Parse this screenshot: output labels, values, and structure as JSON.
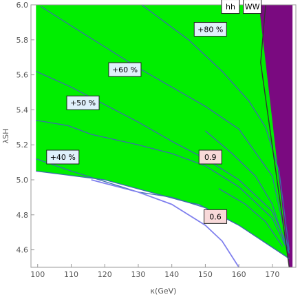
{
  "chart_data": {
    "type": "area",
    "xlabel": "κ(GeV)",
    "ylabel": "λSH",
    "xlim": [
      98,
      177
    ],
    "ylim": [
      4.5,
      6.0
    ],
    "x_ticks": [
      "100",
      "110",
      "120",
      "130",
      "140",
      "150",
      "160",
      "170"
    ],
    "y_ticks": [
      "4.6",
      "4.8",
      "5.0",
      "5.2",
      "5.4",
      "5.6",
      "5.8",
      "6.0"
    ],
    "x_tick_values": [
      100,
      110,
      120,
      130,
      140,
      150,
      160,
      170
    ],
    "y_tick_values": [
      4.6,
      4.8,
      5.0,
      5.2,
      5.4,
      5.6,
      5.8,
      6.0
    ],
    "grid": false,
    "colors": {
      "allowed_region": "#00ee00",
      "excluded_region": "#7a0a80",
      "contour": "#3a6fa8",
      "blue_curve": "#8080ee",
      "label_box_blue": "#dff0fb",
      "label_box_pink": "#f8d9d9",
      "label_box_white": "#ffffff",
      "frame": "#999999"
    },
    "regions": [
      {
        "name": "allowed",
        "polygon": [
          [
            99.5,
            6.0
          ],
          [
            168,
            6.0
          ],
          [
            175,
            4.55
          ],
          [
            160,
            4.74
          ],
          [
            148,
            4.86
          ],
          [
            145,
            4.87
          ],
          [
            120,
            5.0
          ],
          [
            99.5,
            5.05
          ]
        ]
      },
      {
        "name": "excluded",
        "polygon": [
          [
            166,
            6.0
          ],
          [
            176,
            6.0
          ],
          [
            176,
            4.5
          ],
          [
            175,
            4.5
          ]
        ]
      }
    ],
    "region_boundaries": [
      [
        [
          166,
          6.0
        ],
        [
          175,
          4.5
        ]
      ]
    ],
    "contours": [
      [
        [
          101,
          5.99
        ],
        [
          110,
          5.88
        ],
        [
          120,
          5.76
        ],
        [
          130,
          5.64
        ],
        [
          140,
          5.53
        ],
        [
          150,
          5.42
        ],
        [
          160,
          5.29
        ],
        [
          170,
          5.02
        ],
        [
          175,
          4.58
        ]
      ],
      [
        [
          99.5,
          5.62
        ],
        [
          110,
          5.53
        ],
        [
          120,
          5.43
        ],
        [
          130,
          5.33
        ],
        [
          140,
          5.22
        ],
        [
          150,
          5.12
        ],
        [
          160,
          5.0
        ],
        [
          170,
          4.82
        ],
        [
          175,
          4.6
        ]
      ],
      [
        [
          99.5,
          5.34
        ],
        [
          109,
          5.31
        ],
        [
          116,
          5.26
        ],
        [
          130,
          5.2
        ],
        [
          140,
          5.15
        ],
        [
          150,
          5.08
        ],
        [
          160,
          4.96
        ],
        [
          170,
          4.78
        ],
        [
          175,
          4.58
        ]
      ],
      [
        [
          99.5,
          5.12
        ],
        [
          110,
          5.05
        ],
        [
          120,
          4.99
        ],
        [
          130,
          4.93
        ],
        [
          140,
          4.9
        ],
        [
          150,
          4.84
        ],
        [
          160,
          4.74
        ],
        [
          175,
          4.55
        ]
      ],
      [
        [
          131,
          6.0
        ],
        [
          145,
          5.8
        ],
        [
          155,
          5.62
        ],
        [
          163,
          5.45
        ],
        [
          168,
          5.3
        ],
        [
          172,
          5.05
        ],
        [
          175,
          4.6
        ]
      ],
      [
        [
          150,
          5.28
        ],
        [
          158,
          5.15
        ],
        [
          165,
          5.02
        ],
        [
          170,
          4.86
        ],
        [
          174,
          4.62
        ]
      ],
      [
        [
          154,
          4.95
        ],
        [
          162,
          4.86
        ],
        [
          168,
          4.76
        ],
        [
          173,
          4.62
        ]
      ]
    ],
    "region_outline": [
      [
        99.5,
        5.05
      ],
      [
        120,
        5.0
      ],
      [
        145,
        4.87
      ],
      [
        148,
        4.86
      ],
      [
        160,
        4.74
      ],
      [
        175,
        4.55
      ]
    ],
    "curve_blue": [
      [
        116,
        5.0
      ],
      [
        120,
        4.98
      ],
      [
        130,
        4.93
      ],
      [
        140,
        4.86
      ],
      [
        150,
        4.74
      ],
      [
        155,
        4.65
      ],
      [
        160,
        4.5
      ]
    ],
    "curve_dark": [
      [
        168,
        6.0
      ],
      [
        166.5,
        5.67
      ],
      [
        175,
        4.5
      ]
    ],
    "annotations": [
      {
        "text": "+80 %",
        "x": 151.5,
        "y": 5.86,
        "style": "blue"
      },
      {
        "text": "+60 %",
        "x": 126.0,
        "y": 5.63,
        "style": "blue"
      },
      {
        "text": "+50 %",
        "x": 113.5,
        "y": 5.44,
        "style": "blue"
      },
      {
        "text": "+40 %",
        "x": 107.5,
        "y": 5.13,
        "style": "blue"
      },
      {
        "text": "0.9",
        "x": 151.5,
        "y": 5.13,
        "style": "pink"
      },
      {
        "text": "0.6",
        "x": 153.0,
        "y": 4.79,
        "style": "pink"
      },
      {
        "text": "hh",
        "x": 157.5,
        "y": 5.99,
        "style": "white"
      },
      {
        "text": "WW",
        "x": 164.0,
        "y": 5.99,
        "style": "white"
      }
    ]
  }
}
